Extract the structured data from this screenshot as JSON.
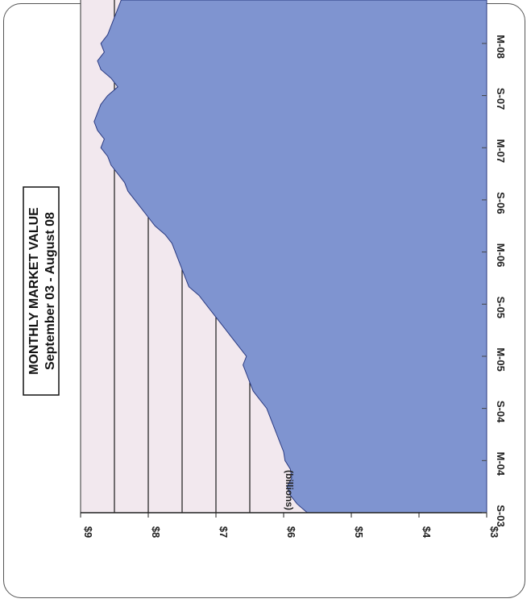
{
  "title": {
    "line1": "MONTHLY MARKET VALUE",
    "line2": "September 03 - August 08"
  },
  "unit_label": "(billions)",
  "colors": {
    "area_fill": "#7F94D0",
    "plot_background": "#F2E8EE",
    "gridline": "#1a1a1a"
  },
  "chart_data": {
    "type": "area",
    "orientation": "rotated-90-clockwise",
    "title": "MONTHLY MARKET VALUE",
    "subtitle": "September 03 - August 08",
    "ylabel": "(billions)",
    "ylim": [
      3,
      9
    ],
    "y_ticks": [
      "$3",
      "$4",
      "$5",
      "$6",
      "$7",
      "$8",
      "$9"
    ],
    "y_tick_values": [
      3,
      4,
      5,
      6,
      7,
      8,
      9
    ],
    "gridlines": [
      6.5,
      7.0,
      7.5,
      8.0,
      8.5
    ],
    "x_tick_labels": [
      "S-03",
      "M-04",
      "S-04",
      "M-05",
      "S-05",
      "M-06",
      "S-06",
      "M-07",
      "S-07",
      "M-08"
    ],
    "x_tick_months": [
      0,
      6,
      12,
      18,
      24,
      30,
      36,
      42,
      48,
      54
    ],
    "x_start": "Sep 2003",
    "x_end": "Aug 2008",
    "series": [
      {
        "values": [
          5.65,
          5.8,
          5.9,
          5.95,
          5.88,
          5.9,
          5.98,
          6.0,
          6.05,
          6.1,
          6.15,
          6.2,
          6.25,
          6.35,
          6.45,
          6.5,
          6.55,
          6.6,
          6.55,
          6.65,
          6.75,
          6.85,
          6.95,
          7.05,
          7.15,
          7.25,
          7.4,
          7.45,
          7.5,
          7.55,
          7.6,
          7.65,
          7.75,
          7.9,
          8.0,
          8.1,
          8.2,
          8.3,
          8.35,
          8.45,
          8.55,
          8.6,
          8.7,
          8.65,
          8.75,
          8.8,
          8.75,
          8.7,
          8.6,
          8.45,
          8.55,
          8.7,
          8.75,
          8.65,
          8.7,
          8.6,
          8.55,
          8.5,
          8.45,
          8.4
        ]
      }
    ]
  }
}
